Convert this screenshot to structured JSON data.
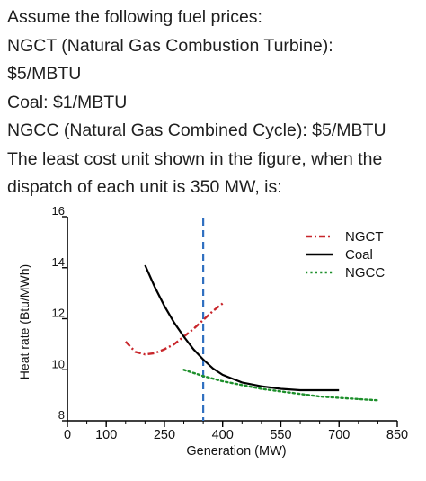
{
  "question": {
    "lines": [
      "Assume the following fuel prices:",
      "NGCT (Natural Gas Combustion Turbine):",
      "$5/MBTU",
      "Coal: $1/MBTU",
      "NGCC (Natural Gas Combined Cycle): $5/MBTU",
      "The least cost unit shown in the figure, when the",
      "dispatch of each unit is 350 MW, is:"
    ]
  },
  "chart_data": {
    "type": "line",
    "title": "",
    "xlabel": "Generation (MW)",
    "ylabel": "Heat rate (Btu/MWh)",
    "xlim": [
      0,
      850
    ],
    "ylim": [
      8,
      16
    ],
    "xticks": [
      0,
      100,
      250,
      400,
      550,
      700,
      850
    ],
    "yticks": [
      8,
      10,
      12,
      14,
      16
    ],
    "legend_position": "top-right",
    "grid": false,
    "series": [
      {
        "name": "NGCT",
        "style": "dash-dot",
        "color": "#c8262b",
        "x": [
          150,
          175,
          200,
          225,
          250,
          275,
          300,
          325,
          350,
          375,
          400
        ],
        "y": [
          11.1,
          10.7,
          10.6,
          10.65,
          10.8,
          11.0,
          11.3,
          11.6,
          11.95,
          12.3,
          12.6
        ]
      },
      {
        "name": "Coal",
        "style": "solid",
        "color": "#000000",
        "x": [
          200,
          225,
          250,
          275,
          300,
          325,
          350,
          375,
          400,
          450,
          500,
          550,
          600,
          650,
          700
        ],
        "y": [
          14.1,
          13.25,
          12.5,
          11.85,
          11.3,
          10.8,
          10.4,
          10.05,
          9.8,
          9.5,
          9.35,
          9.25,
          9.2,
          9.2,
          9.2
        ]
      },
      {
        "name": "NGCC",
        "style": "dotted",
        "color": "#1d8f2b",
        "x": [
          300,
          350,
          400,
          450,
          500,
          550,
          600,
          650,
          700,
          750,
          800
        ],
        "y": [
          10.0,
          9.75,
          9.55,
          9.4,
          9.25,
          9.15,
          9.05,
          8.95,
          8.9,
          8.85,
          8.8
        ]
      }
    ],
    "reference_lines": [
      {
        "axis": "x",
        "value": 350,
        "style": "dashed",
        "color": "#2f6fc0"
      }
    ]
  }
}
